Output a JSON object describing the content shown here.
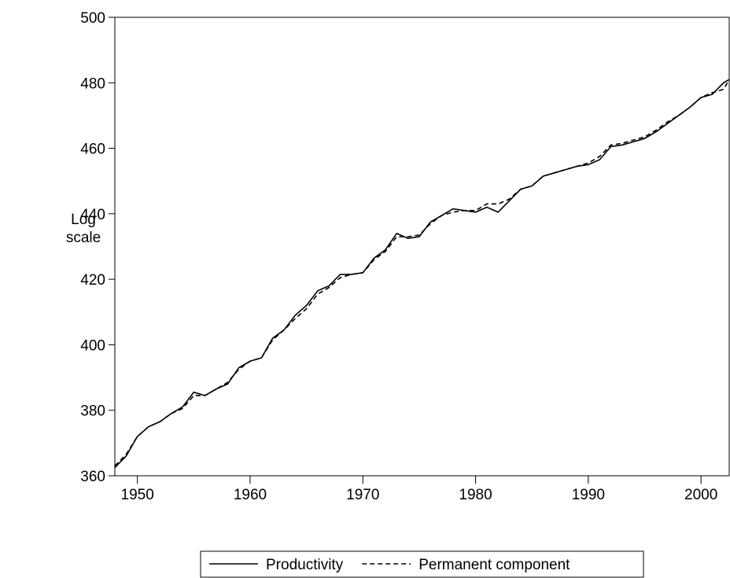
{
  "chart_data": {
    "type": "line",
    "y_label": "Log scale",
    "x": [
      1948,
      1949,
      1950,
      1951,
      1952,
      1953,
      1954,
      1955,
      1956,
      1957,
      1958,
      1959,
      1960,
      1961,
      1962,
      1963,
      1964,
      1965,
      1966,
      1967,
      1968,
      1969,
      1970,
      1971,
      1972,
      1973,
      1974,
      1975,
      1976,
      1977,
      1978,
      1979,
      1980,
      1981,
      1982,
      1983,
      1984,
      1985,
      1986,
      1987,
      1988,
      1989,
      1990,
      1991,
      1992,
      1993,
      1994,
      1995,
      1996,
      1997,
      1998,
      1999,
      2000,
      2001,
      2002,
      2002.5
    ],
    "series": [
      {
        "name": "Productivity",
        "color": "#000000",
        "dash": "solid",
        "values": [
          362.5,
          366,
          372,
          375,
          376.5,
          379,
          381,
          385.5,
          384.5,
          386.5,
          388,
          393,
          395,
          396,
          402,
          404.5,
          409,
          412,
          416.5,
          418,
          421.5,
          421.5,
          422,
          426.5,
          429,
          434,
          432.5,
          433,
          437.5,
          439.5,
          441.5,
          441,
          440.5,
          442,
          440.5,
          444,
          447.5,
          448.5,
          451.5,
          452.5,
          453.5,
          454.5,
          455,
          456.5,
          460.5,
          461,
          462,
          463,
          465,
          467.5,
          470,
          472.5,
          475.5,
          476.5,
          480,
          481
        ]
      },
      {
        "name": "Permanent component",
        "color": "#000000",
        "dash": "dashed",
        "values": [
          363,
          366.5,
          372,
          375,
          376.5,
          379,
          380.5,
          384.5,
          384.5,
          386.5,
          388.5,
          392.5,
          395,
          396,
          401.5,
          404.5,
          408,
          411,
          415.5,
          417.5,
          420.5,
          421.5,
          422,
          426,
          428.5,
          433,
          433,
          433.5,
          437,
          439.5,
          440.5,
          441,
          441,
          443,
          443,
          444.5,
          447.5,
          448.5,
          451.5,
          452.5,
          453.5,
          454.5,
          455.5,
          457.5,
          461,
          461.5,
          462.5,
          463.5,
          465.5,
          468,
          470,
          472.5,
          475.5,
          477,
          478,
          481
        ]
      }
    ],
    "xlim": [
      1948,
      2002.5
    ],
    "xticks": [
      1950,
      1960,
      1970,
      1980,
      1990,
      2000
    ],
    "ylim": [
      360,
      500
    ],
    "yticks": [
      360,
      380,
      400,
      420,
      440,
      460,
      480,
      500
    ],
    "grid": false
  }
}
